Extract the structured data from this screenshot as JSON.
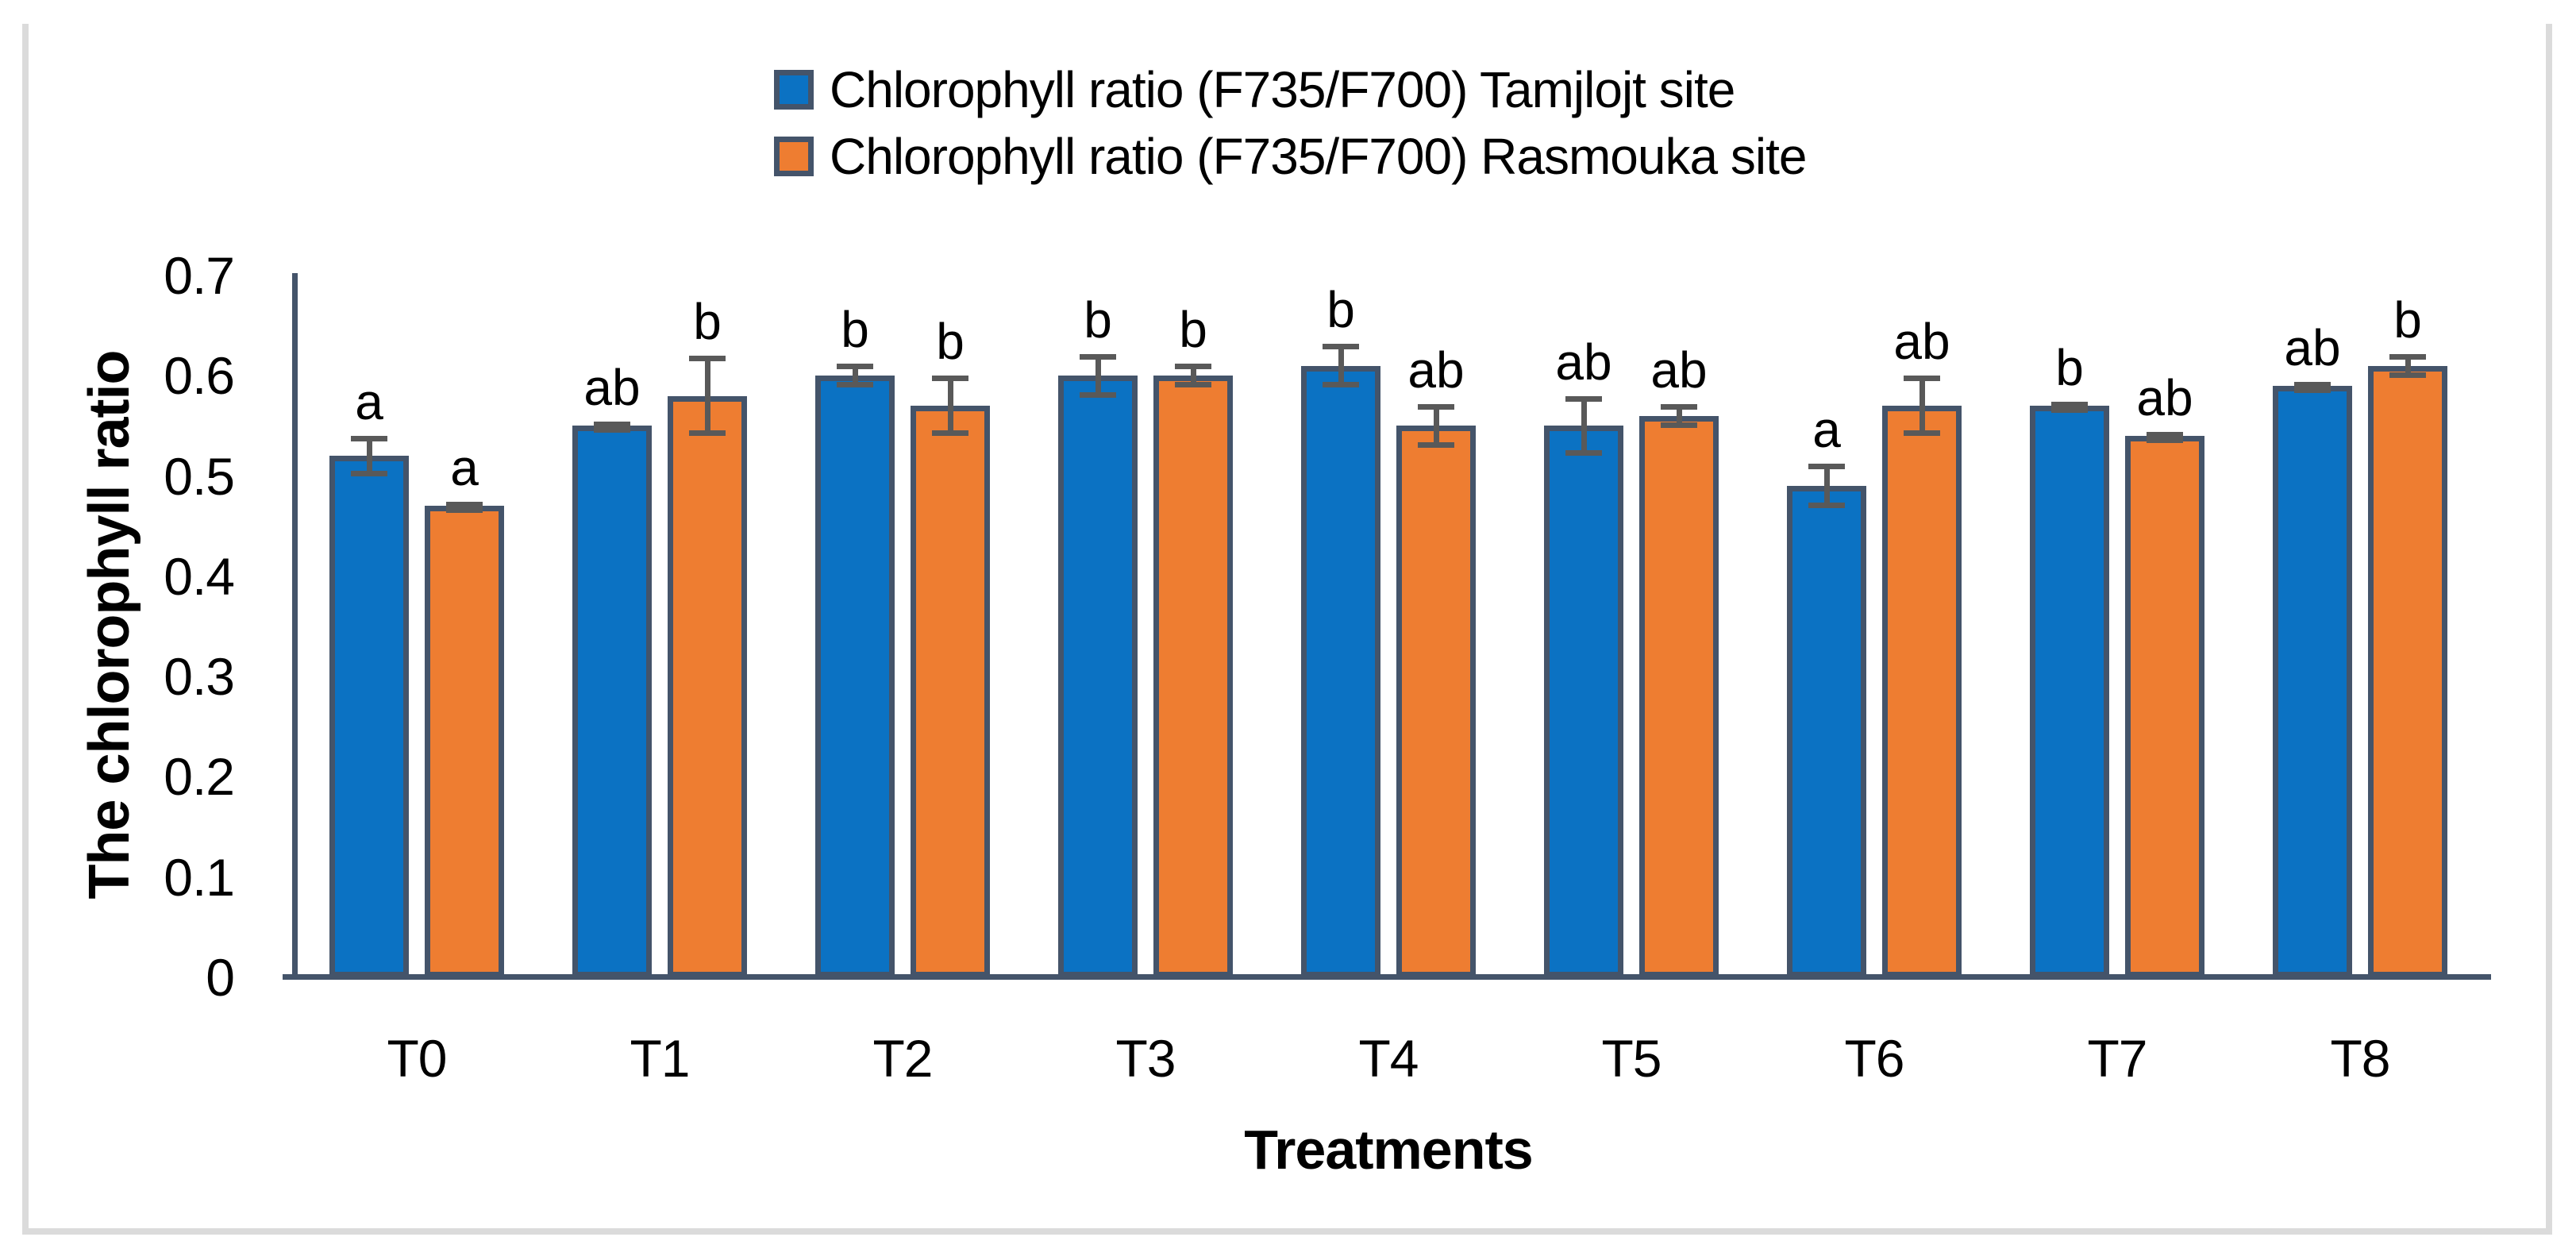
{
  "figure": {
    "background": "#ffffff",
    "frame_color": "#dbdbdb"
  },
  "chart_data": {
    "type": "bar",
    "title": "",
    "xlabel": "Treatments",
    "ylabel": "The chlorophyll ratio",
    "ylim": [
      0,
      0.7
    ],
    "ytick_labels": [
      "0",
      "0.1",
      "0.2",
      "0.3",
      "0.4",
      "0.5",
      "0.6",
      "0.7"
    ],
    "grid": false,
    "legend_position": "top-center",
    "axis_color": "#44546A",
    "error_bar_color": "#595959",
    "categories": [
      "T0",
      "T1",
      "T2",
      "T3",
      "T4",
      "T5",
      "T6",
      "T7",
      "T8"
    ],
    "series": [
      {
        "name": "Chlorophyll ratio (F735/F700) Tamjlojt site",
        "color": "#0B72C3",
        "values": [
          0.52,
          0.55,
          0.6,
          0.6,
          0.61,
          0.55,
          0.49,
          0.57,
          0.59
        ],
        "errors": [
          0.02,
          0.004,
          0.012,
          0.022,
          0.022,
          0.03,
          0.022,
          0.004,
          0.004
        ],
        "letters": [
          "a",
          "ab",
          "b",
          "b",
          "b",
          "ab",
          "a",
          "b",
          "ab"
        ]
      },
      {
        "name": "Chlorophyll ratio (F735/F700) Rasmouka site",
        "color": "#EE7D31",
        "values": [
          0.47,
          0.58,
          0.57,
          0.6,
          0.55,
          0.56,
          0.57,
          0.54,
          0.61
        ],
        "errors": [
          0.004,
          0.04,
          0.03,
          0.012,
          0.022,
          0.012,
          0.03,
          0.004,
          0.012
        ],
        "letters": [
          "a",
          "b",
          "b",
          "b",
          "ab",
          "ab",
          "ab",
          "ab",
          "b"
        ]
      }
    ]
  }
}
